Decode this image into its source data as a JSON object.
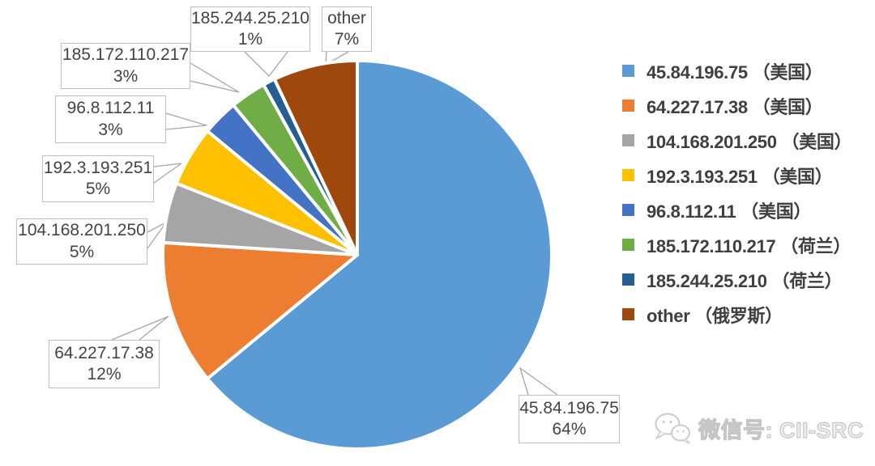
{
  "chart_data": {
    "type": "pie",
    "title": "",
    "legend_position": "right",
    "start_angle_deg": 0,
    "direction": "clockwise",
    "units": "percent",
    "series": [
      {
        "label": "45.84.196.75",
        "country": "美国",
        "value_pct": 64,
        "color": "#5B9BD5"
      },
      {
        "label": "64.227.17.38",
        "country": "美国",
        "value_pct": 12,
        "color": "#ED7D31"
      },
      {
        "label": "104.168.201.250",
        "country": "美国",
        "value_pct": 5,
        "color": "#A5A5A5"
      },
      {
        "label": "192.3.193.251",
        "country": "美国",
        "value_pct": 5,
        "color": "#FFC000"
      },
      {
        "label": "96.8.112.11",
        "country": "美国",
        "value_pct": 3,
        "color": "#4472C4"
      },
      {
        "label": "185.172.110.217",
        "country": "荷兰",
        "value_pct": 3,
        "color": "#70AD47"
      },
      {
        "label": "185.244.25.210",
        "country": "荷兰",
        "value_pct": 1,
        "color": "#255E91"
      },
      {
        "label": "other",
        "country": "俄罗斯",
        "value_pct": 7,
        "color": "#9E480E"
      }
    ]
  },
  "legend": {
    "items": [
      {
        "label": "45.84.196.75 （美国）"
      },
      {
        "label": "64.227.17.38 （美国）"
      },
      {
        "label": "104.168.201.250 （美国）"
      },
      {
        "label": "192.3.193.251 （美国）"
      },
      {
        "label": "96.8.112.11 （美国）"
      },
      {
        "label": "185.172.110.217 （荷兰）"
      },
      {
        "label": "185.244.25.210 （荷兰）"
      },
      {
        "label": "other （俄罗斯）"
      }
    ]
  },
  "callouts": [
    {
      "line1": "45.84.196.75",
      "line2": "64%"
    },
    {
      "line1": "64.227.17.38",
      "line2": "12%"
    },
    {
      "line1": "104.168.201.250",
      "line2": "5%"
    },
    {
      "line1": "192.3.193.251",
      "line2": "5%"
    },
    {
      "line1": "96.8.112.11",
      "line2": "3%"
    },
    {
      "line1": "185.172.110.217",
      "line2": "3%"
    },
    {
      "line1": "185.244.25.210",
      "line2": "1%"
    },
    {
      "line1": "other",
      "line2": "7%"
    }
  ],
  "watermark": {
    "label": "微信号: CII-SRC"
  },
  "colors": {
    "callout_border": "#BFBFBF",
    "leader_line": "#A6A6A6",
    "slice_gap": "#FFFFFF",
    "text": "#444444"
  }
}
